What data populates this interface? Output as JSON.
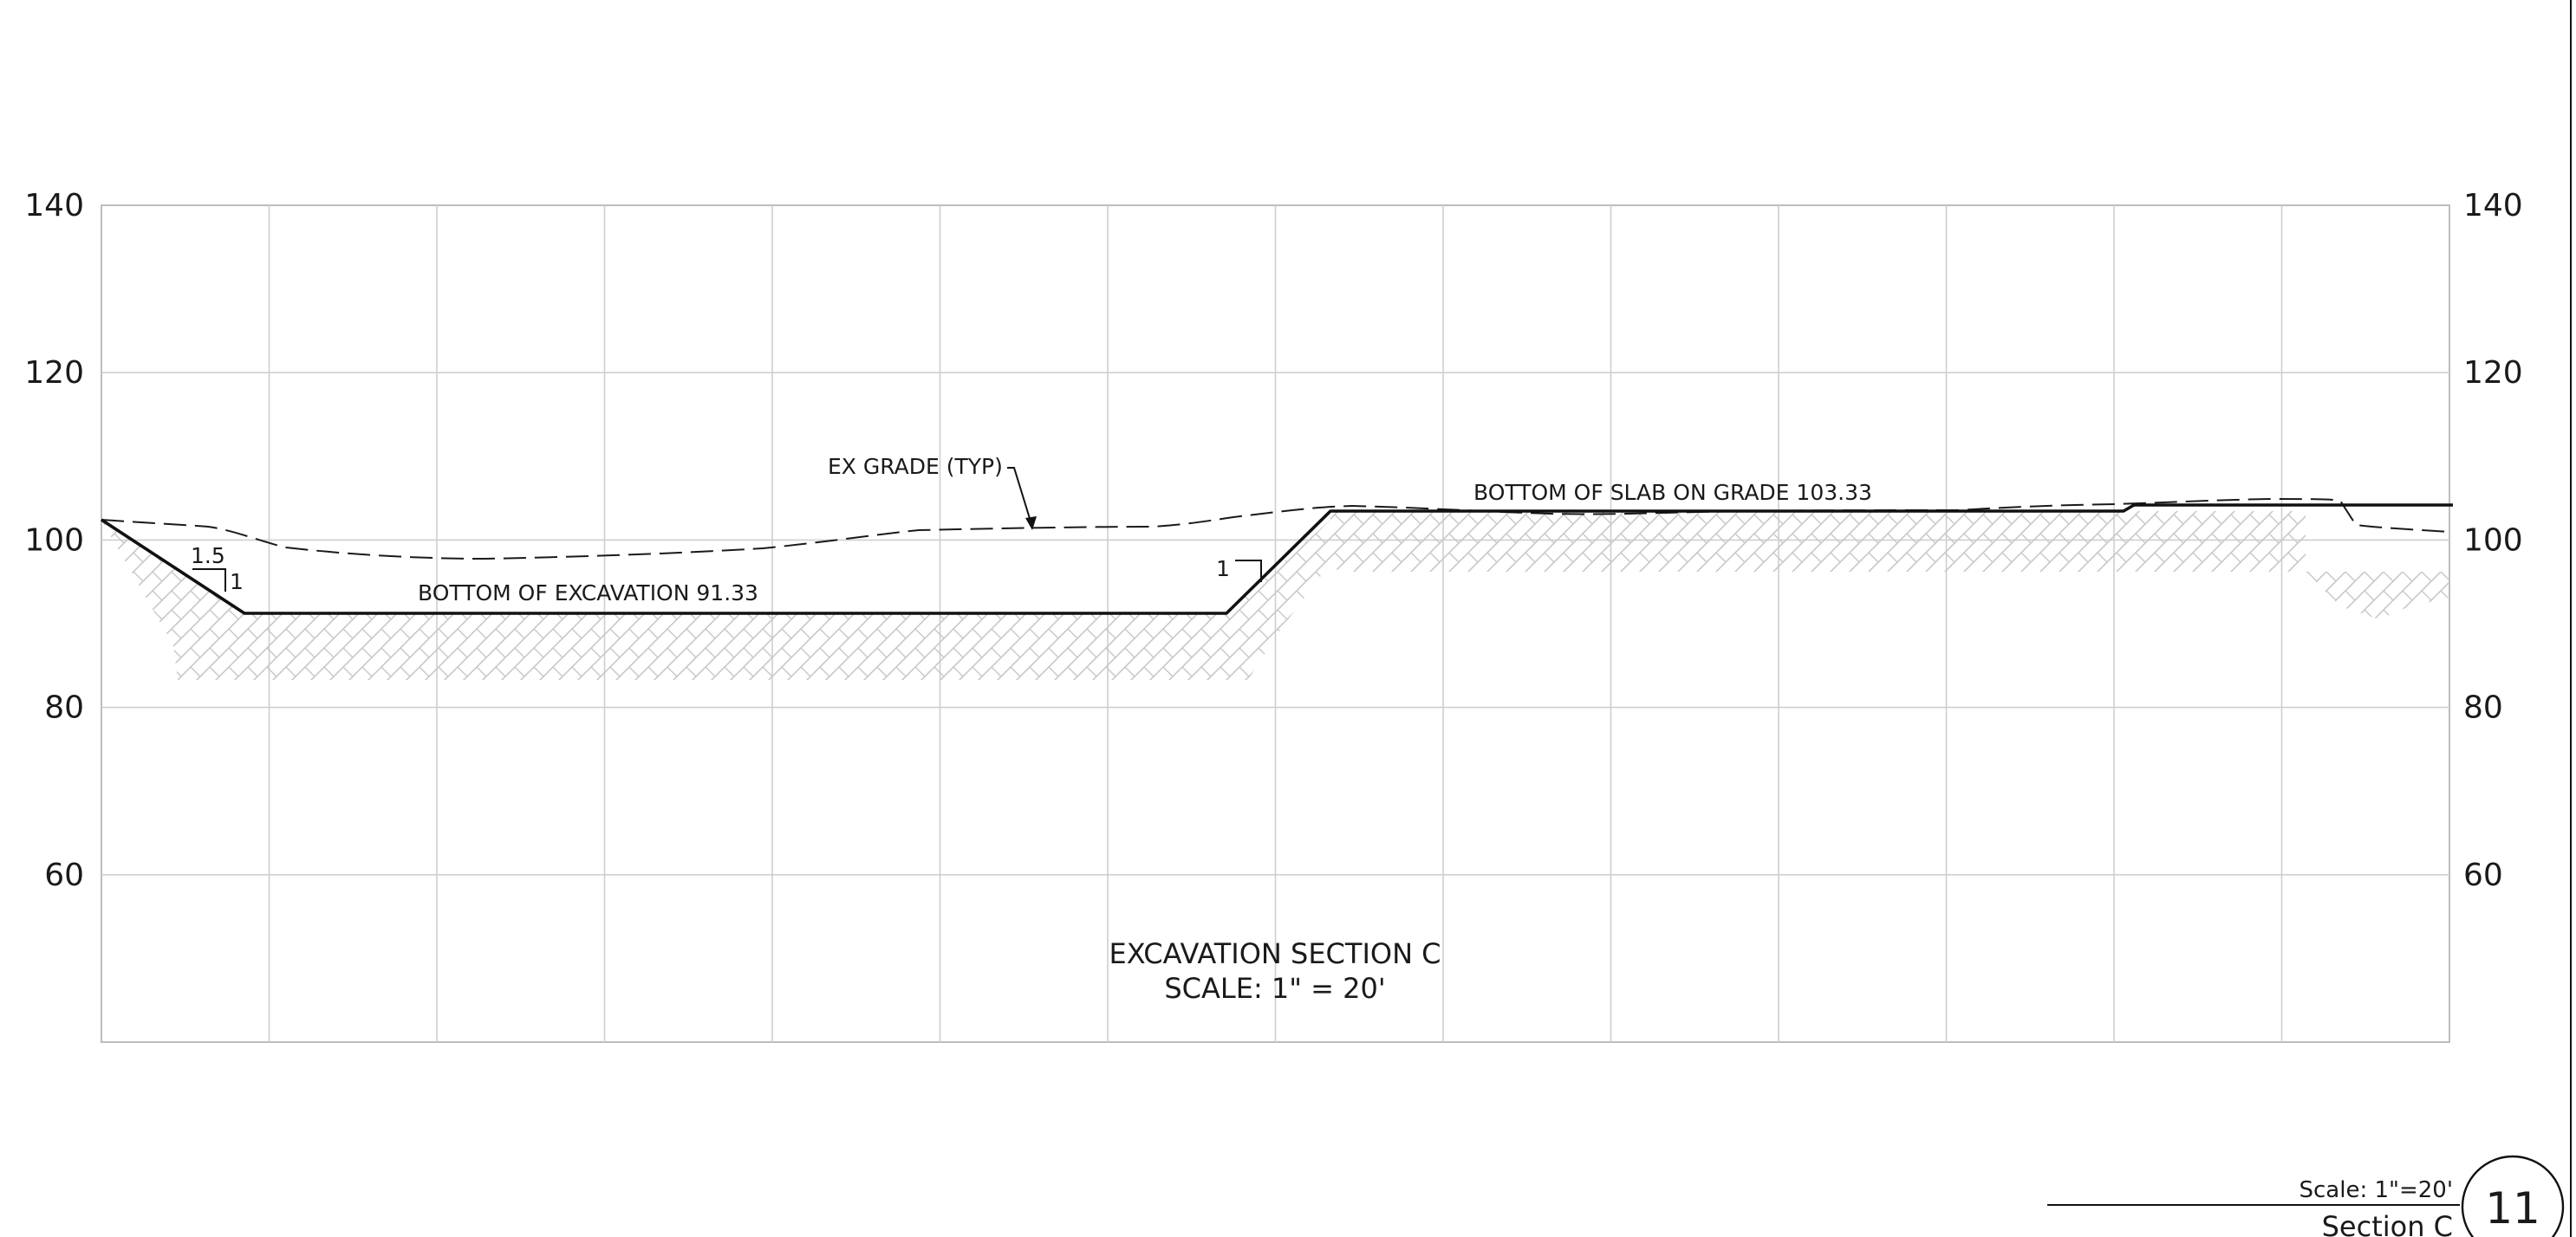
{
  "drawing": {
    "left_axis_labels": [
      "140",
      "120",
      "100",
      "80",
      "60"
    ],
    "right_axis_labels": [
      "140",
      "120",
      "100",
      "80",
      "60"
    ],
    "elevation_ticks": [
      140,
      120,
      100,
      80,
      60
    ],
    "elevation_range": [
      40,
      140
    ],
    "notes": {
      "ex_grade": "EX GRADE (TYP)",
      "bottom_of_excavation": "BOTTOM OF EXCAVATION 91.33",
      "bottom_of_slab": "BOTTOM OF SLAB ON GRADE 103.33",
      "slope_run": "1.5",
      "slope_rise": "1",
      "slope_rise_right": "1"
    },
    "section_title": {
      "line1": "EXCAVATION SECTION C",
      "line2": "SCALE: 1\" = 20'"
    }
  },
  "title_block": {
    "scale": "Scale: 1\"=20'",
    "name": "Section C",
    "number": "11"
  },
  "colors": {
    "grid": "#cfcfcf",
    "linework": "#111111",
    "hatch": "#c8c8c8"
  }
}
